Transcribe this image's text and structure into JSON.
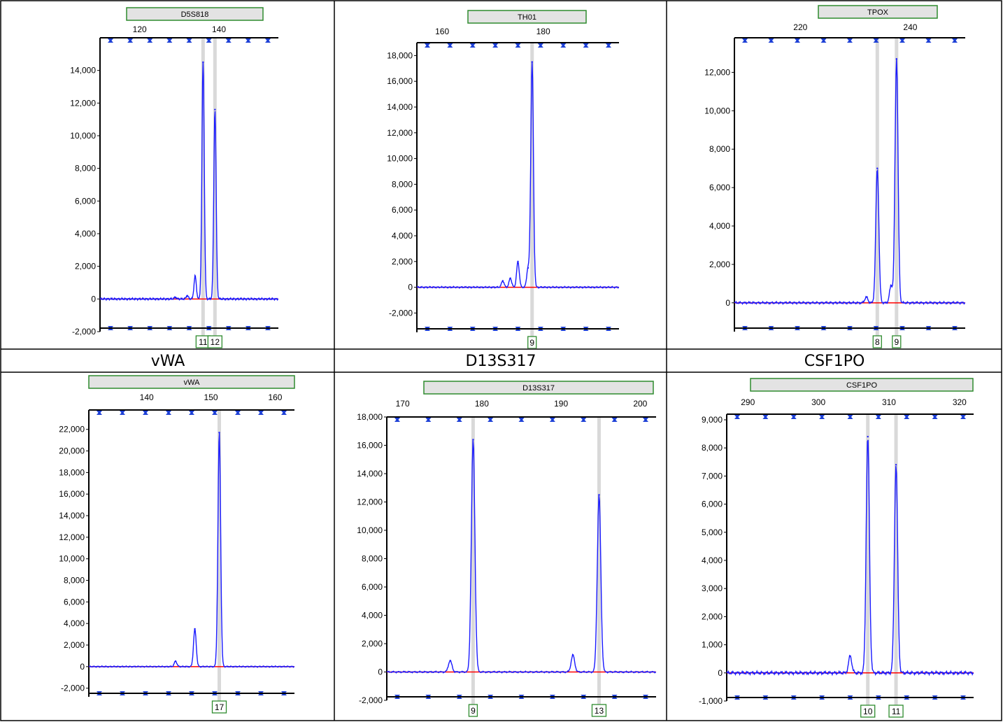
{
  "captions": [
    "vWA",
    "D13S317",
    "CSF1PO"
  ],
  "colors": {
    "signal": "#1a1aff",
    "baseline": "#ff0000",
    "secondary": "#00aa00",
    "marker": "#1c3fd6",
    "bin": "#d9d9d9",
    "label_border": "#2e8b2e",
    "header_fill": "#e3e3e3"
  },
  "chart_data": [
    {
      "type": "line",
      "marker": "D5S818",
      "x_ticks": [
        120,
        140
      ],
      "xlim": [
        110,
        155
      ],
      "ylim": [
        -2000,
        16000
      ],
      "y_ticks": [
        -2000,
        0,
        2000,
        4000,
        6000,
        8000,
        10000,
        12000,
        14000
      ],
      "y_tick_labels": [
        "-2,000",
        "0",
        "2,000",
        "4,000",
        "6,000",
        "8,000",
        "10,000",
        "12,000",
        "14,000"
      ],
      "series": [
        {
          "peaks": [
            {
              "x": 129,
              "y": 100
            },
            {
              "x": 132,
              "y": 200
            },
            {
              "x": 134,
              "y": 1400
            },
            {
              "x": 136,
              "y": 14500
            },
            {
              "x": 139,
              "y": 11600
            }
          ]
        }
      ],
      "alleles": [
        {
          "x": 136,
          "label": "11"
        },
        {
          "x": 139,
          "label": "12"
        }
      ]
    },
    {
      "type": "line",
      "marker": "TH01",
      "x_ticks": [
        160,
        180
      ],
      "xlim": [
        155,
        195
      ],
      "ylim": [
        -3500,
        19000
      ],
      "y_ticks": [
        -2000,
        0,
        2000,
        4000,
        6000,
        8000,
        10000,
        12000,
        14000,
        16000,
        18000
      ],
      "y_tick_labels": [
        "-2,000",
        "0",
        "2,000",
        "4,000",
        "6,000",
        "8,000",
        "10,000",
        "12,000",
        "14,000",
        "16,000",
        "18,000"
      ],
      "series": [
        {
          "peaks": [
            {
              "x": 172,
              "y": 500
            },
            {
              "x": 173.5,
              "y": 700
            },
            {
              "x": 175,
              "y": 2000
            },
            {
              "x": 177,
              "y": 1500
            },
            {
              "x": 177.8,
              "y": 17500
            }
          ]
        }
      ],
      "alleles": [
        {
          "x": 177.8,
          "label": "9"
        }
      ]
    },
    {
      "type": "line",
      "marker": "TPOX",
      "x_ticks": [
        220,
        240
      ],
      "xlim": [
        208,
        250
      ],
      "ylim": [
        -1500,
        13800
      ],
      "y_ticks": [
        0,
        2000,
        4000,
        6000,
        8000,
        10000,
        12000
      ],
      "y_tick_labels": [
        "0",
        "2,000",
        "4,000",
        "6,000",
        "8,000",
        "10,000",
        "12,000"
      ],
      "series": [
        {
          "peaks": [
            {
              "x": 232,
              "y": 300
            },
            {
              "x": 234,
              "y": 7000
            },
            {
              "x": 236.5,
              "y": 900
            },
            {
              "x": 237.5,
              "y": 12700
            }
          ]
        }
      ],
      "alleles": [
        {
          "x": 234,
          "label": "8"
        },
        {
          "x": 237.5,
          "label": "9"
        }
      ]
    },
    {
      "type": "line",
      "marker": "vWA",
      "x_ticks": [
        140,
        150,
        160
      ],
      "xlim": [
        131,
        163
      ],
      "ylim": [
        -2800,
        23800
      ],
      "y_ticks": [
        -2000,
        0,
        2000,
        4000,
        6000,
        8000,
        10000,
        12000,
        14000,
        16000,
        18000,
        20000,
        22000
      ],
      "y_tick_labels": [
        "-2,000",
        "0",
        "2,000",
        "4,000",
        "6,000",
        "8,000",
        "10,000",
        "12,000",
        "14,000",
        "16,000",
        "18,000",
        "20,000",
        "22,000"
      ],
      "series": [
        {
          "peaks": [
            {
              "x": 144.5,
              "y": 500
            },
            {
              "x": 147.5,
              "y": 3500
            },
            {
              "x": 151.3,
              "y": 21700
            }
          ]
        }
      ],
      "alleles": [
        {
          "x": 151.3,
          "label": "17"
        }
      ]
    },
    {
      "type": "line",
      "marker": "D13S317",
      "x_ticks": [
        170,
        180,
        190,
        200
      ],
      "xlim": [
        168,
        202
      ],
      "ylim": [
        -2000,
        18000
      ],
      "y_ticks": [
        -2000,
        0,
        2000,
        4000,
        6000,
        8000,
        10000,
        12000,
        14000,
        16000,
        18000
      ],
      "y_tick_labels": [
        "-2,000",
        "0",
        "2,000",
        "4,000",
        "6,000",
        "8,000",
        "10,000",
        "12,000",
        "14,000",
        "16,000",
        "18,000"
      ],
      "series": [
        {
          "peaks": [
            {
              "x": 176,
              "y": 800
            },
            {
              "x": 178.9,
              "y": 16400
            },
            {
              "x": 191.5,
              "y": 1200
            },
            {
              "x": 194.8,
              "y": 12500
            }
          ]
        }
      ],
      "alleles": [
        {
          "x": 178.9,
          "label": "9"
        },
        {
          "x": 194.8,
          "label": "13"
        }
      ]
    },
    {
      "type": "line",
      "marker": "CSF1PO",
      "x_ticks": [
        290,
        300,
        310,
        320
      ],
      "xlim": [
        287,
        322
      ],
      "ylim": [
        -1000,
        9200
      ],
      "y_ticks": [
        -1000,
        0,
        1000,
        2000,
        3000,
        4000,
        5000,
        6000,
        7000,
        8000,
        9000
      ],
      "y_tick_labels": [
        "-1,000",
        "0",
        "1,000",
        "2,000",
        "3,000",
        "4,000",
        "5,000",
        "6,000",
        "7,000",
        "8,000",
        "9,000"
      ],
      "series": [
        {
          "peaks": [
            {
              "x": 304.5,
              "y": 600
            },
            {
              "x": 307,
              "y": 8400
            },
            {
              "x": 311,
              "y": 7400
            }
          ]
        }
      ],
      "alleles": [
        {
          "x": 307,
          "label": "10"
        },
        {
          "x": 311,
          "label": "11"
        }
      ]
    }
  ]
}
